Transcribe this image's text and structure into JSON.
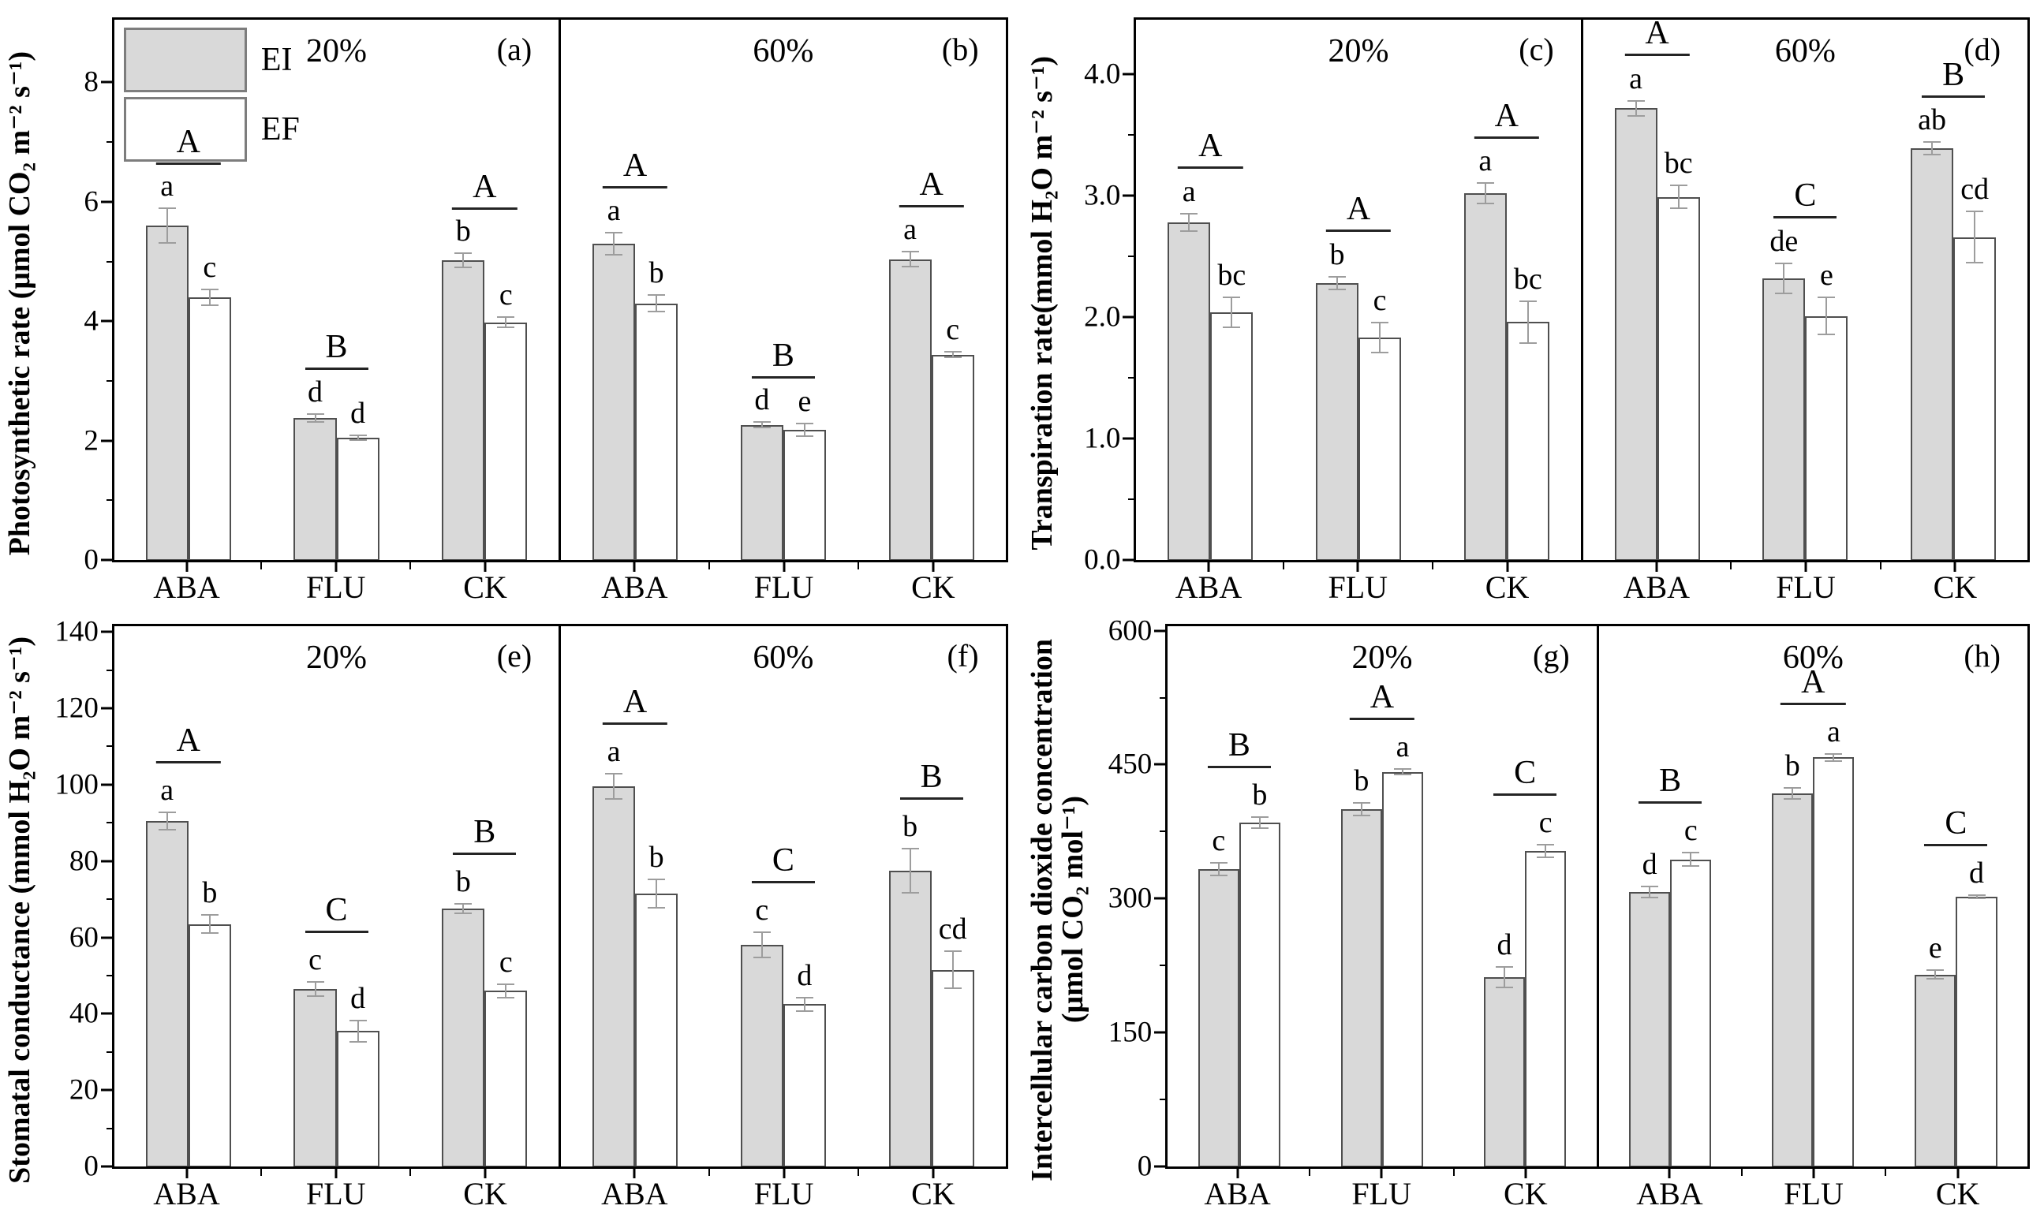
{
  "figure": {
    "legend": {
      "items": [
        {
          "label": "EI",
          "fill": "#d9d9d9"
        },
        {
          "label": "EF",
          "fill": "#ffffff"
        }
      ]
    },
    "colors": {
      "axis": "#000000",
      "bar_border": "#4f4f4f",
      "bar_gray": "#d9d9d9",
      "bar_white": "#ffffff",
      "error_bar": "#9d9d9d"
    },
    "categories": [
      "ABA",
      "FLU",
      "CK"
    ],
    "series_names": [
      "EI",
      "EF"
    ]
  },
  "chart_data": [
    {
      "type": "bar",
      "ylabel_lines": [
        "Photosynthetic rate (μmol CO₂ m⁻² s⁻¹)"
      ],
      "yticks": [
        0,
        2,
        4,
        6,
        8
      ],
      "ytick_labels": [
        "0",
        "2",
        "4",
        "6",
        "8"
      ],
      "ylim": [
        0,
        9.05
      ],
      "categories": [
        "ABA",
        "FLU",
        "CK"
      ],
      "panels": [
        {
          "tag": "(a)",
          "title": "20%",
          "legend": true,
          "groups": [
            {
              "category": "ABA",
              "group_letter": "A",
              "bars": [
                {
                  "series": "EI",
                  "value": 5.6,
                  "error": 0.3,
                  "letter": "a"
                },
                {
                  "series": "EF",
                  "value": 4.4,
                  "error": 0.15,
                  "letter": "c"
                }
              ]
            },
            {
              "category": "FLU",
              "group_letter": "B",
              "bars": [
                {
                  "series": "EI",
                  "value": 2.38,
                  "error": 0.08,
                  "letter": "d"
                },
                {
                  "series": "EF",
                  "value": 2.05,
                  "error": 0.05,
                  "letter": "d"
                }
              ]
            },
            {
              "category": "CK",
              "group_letter": "A",
              "bars": [
                {
                  "series": "EI",
                  "value": 5.02,
                  "error": 0.13,
                  "letter": "b"
                },
                {
                  "series": "EF",
                  "value": 3.98,
                  "error": 0.1,
                  "letter": "c"
                }
              ]
            }
          ]
        },
        {
          "tag": "(b)",
          "title": "60%",
          "legend": false,
          "groups": [
            {
              "category": "ABA",
              "group_letter": "A",
              "bars": [
                {
                  "series": "EI",
                  "value": 5.3,
                  "error": 0.2,
                  "letter": "a"
                },
                {
                  "series": "EF",
                  "value": 4.3,
                  "error": 0.15,
                  "letter": "b"
                }
              ]
            },
            {
              "category": "FLU",
              "group_letter": "B",
              "bars": [
                {
                  "series": "EI",
                  "value": 2.26,
                  "error": 0.06,
                  "letter": "d"
                },
                {
                  "series": "EF",
                  "value": 2.18,
                  "error": 0.12,
                  "letter": "e"
                }
              ]
            },
            {
              "category": "CK",
              "group_letter": "A",
              "bars": [
                {
                  "series": "EI",
                  "value": 5.04,
                  "error": 0.14,
                  "letter": "a"
                },
                {
                  "series": "EF",
                  "value": 3.44,
                  "error": 0.06,
                  "letter": "c"
                }
              ]
            }
          ]
        }
      ]
    },
    {
      "type": "bar",
      "ylabel_lines": [
        "Transpiration rate(mmol H₂O m⁻² s⁻¹)"
      ],
      "yticks": [
        0,
        1,
        2,
        3,
        4
      ],
      "ytick_labels": [
        "0.0",
        "1.0",
        "2.0",
        "3.0",
        "4.0"
      ],
      "ylim": [
        0,
        4.45
      ],
      "categories": [
        "ABA",
        "FLU",
        "CK"
      ],
      "panels": [
        {
          "tag": "(c)",
          "title": "20%",
          "legend": false,
          "groups": [
            {
              "category": "ABA",
              "group_letter": "A",
              "bars": [
                {
                  "series": "EI",
                  "value": 2.78,
                  "error": 0.08,
                  "letter": "a"
                },
                {
                  "series": "EF",
                  "value": 2.04,
                  "error": 0.13,
                  "letter": "bc"
                }
              ]
            },
            {
              "category": "FLU",
              "group_letter": "A",
              "bars": [
                {
                  "series": "EI",
                  "value": 2.28,
                  "error": 0.06,
                  "letter": "b"
                },
                {
                  "series": "EF",
                  "value": 1.83,
                  "error": 0.13,
                  "letter": "c"
                }
              ]
            },
            {
              "category": "CK",
              "group_letter": "A",
              "bars": [
                {
                  "series": "EI",
                  "value": 3.02,
                  "error": 0.09,
                  "letter": "a"
                },
                {
                  "series": "EF",
                  "value": 1.96,
                  "error": 0.18,
                  "letter": "bc"
                }
              ]
            }
          ]
        },
        {
          "tag": "(d)",
          "title": "60%",
          "legend": false,
          "groups": [
            {
              "category": "ABA",
              "group_letter": "A",
              "bars": [
                {
                  "series": "EI",
                  "value": 3.72,
                  "error": 0.07,
                  "letter": "a"
                },
                {
                  "series": "EF",
                  "value": 2.99,
                  "error": 0.1,
                  "letter": "bc"
                }
              ]
            },
            {
              "category": "FLU",
              "group_letter": "C",
              "bars": [
                {
                  "series": "EI",
                  "value": 2.32,
                  "error": 0.13,
                  "letter": "de"
                },
                {
                  "series": "EF",
                  "value": 2.01,
                  "error": 0.16,
                  "letter": "e"
                }
              ]
            },
            {
              "category": "CK",
              "group_letter": "B",
              "bars": [
                {
                  "series": "EI",
                  "value": 3.39,
                  "error": 0.06,
                  "letter": "ab"
                },
                {
                  "series": "EF",
                  "value": 2.66,
                  "error": 0.22,
                  "letter": "cd"
                }
              ]
            }
          ]
        }
      ]
    },
    {
      "type": "bar",
      "ylabel_lines": [
        "Stomatal conductance (mmol H₂O m⁻² s⁻¹)"
      ],
      "yticks": [
        0,
        20,
        40,
        60,
        80,
        100,
        120,
        140
      ],
      "ytick_labels": [
        "0",
        "20",
        "40",
        "60",
        "80",
        "100",
        "120",
        "140"
      ],
      "ylim": [
        0,
        141.5
      ],
      "categories": [
        "ABA",
        "FLU",
        "CK"
      ],
      "panels": [
        {
          "tag": "(e)",
          "title": "20%",
          "legend": false,
          "groups": [
            {
              "category": "ABA",
              "group_letter": "A",
              "bars": [
                {
                  "series": "EI",
                  "value": 90.5,
                  "error": 2.5,
                  "letter": "a"
                },
                {
                  "series": "EF",
                  "value": 63.5,
                  "error": 2.5,
                  "letter": "b"
                }
              ]
            },
            {
              "category": "FLU",
              "group_letter": "C",
              "bars": [
                {
                  "series": "EI",
                  "value": 46.5,
                  "error": 2.0,
                  "letter": "c"
                },
                {
                  "series": "EF",
                  "value": 35.5,
                  "error": 3.0,
                  "letter": "d"
                }
              ]
            },
            {
              "category": "CK",
              "group_letter": "B",
              "bars": [
                {
                  "series": "EI",
                  "value": 67.5,
                  "error": 1.5,
                  "letter": "b"
                },
                {
                  "series": "EF",
                  "value": 46.0,
                  "error": 2.0,
                  "letter": "c"
                }
              ]
            }
          ]
        },
        {
          "tag": "(f)",
          "title": "60%",
          "legend": false,
          "groups": [
            {
              "category": "ABA",
              "group_letter": "A",
              "bars": [
                {
                  "series": "EI",
                  "value": 99.5,
                  "error": 3.5,
                  "letter": "a"
                },
                {
                  "series": "EF",
                  "value": 71.5,
                  "error": 4.0,
                  "letter": "b"
                }
              ]
            },
            {
              "category": "FLU",
              "group_letter": "C",
              "bars": [
                {
                  "series": "EI",
                  "value": 58.0,
                  "error": 3.5,
                  "letter": "c"
                },
                {
                  "series": "EF",
                  "value": 42.5,
                  "error": 2.0,
                  "letter": "d"
                }
              ]
            },
            {
              "category": "CK",
              "group_letter": "B",
              "bars": [
                {
                  "series": "EI",
                  "value": 77.5,
                  "error": 6.0,
                  "letter": "b"
                },
                {
                  "series": "EF",
                  "value": 51.5,
                  "error": 5.0,
                  "letter": "cd"
                }
              ]
            }
          ]
        }
      ]
    },
    {
      "type": "bar",
      "ylabel_lines": [
        "Intercellular carbon dioxide concentration",
        "(μmol CO₂ mol⁻¹)"
      ],
      "yticks": [
        0,
        150,
        300,
        450,
        600
      ],
      "ytick_labels": [
        "0",
        "150",
        "300",
        "450",
        "600"
      ],
      "ylim": [
        0,
        605
      ],
      "categories": [
        "ABA",
        "FLU",
        "CK"
      ],
      "panels": [
        {
          "tag": "(g)",
          "title": "20%",
          "legend": false,
          "groups": [
            {
              "category": "ABA",
              "group_letter": "B",
              "bars": [
                {
                  "series": "EI",
                  "value": 333,
                  "error": 8,
                  "letter": "c"
                },
                {
                  "series": "EF",
                  "value": 385,
                  "error": 7,
                  "letter": "b"
                }
              ]
            },
            {
              "category": "FLU",
              "group_letter": "A",
              "bars": [
                {
                  "series": "EI",
                  "value": 400,
                  "error": 8,
                  "letter": "b"
                },
                {
                  "series": "EF",
                  "value": 442,
                  "error": 4,
                  "letter": "a"
                }
              ]
            },
            {
              "category": "CK",
              "group_letter": "C",
              "bars": [
                {
                  "series": "EI",
                  "value": 212,
                  "error": 12,
                  "letter": "d"
                },
                {
                  "series": "EF",
                  "value": 353,
                  "error": 8,
                  "letter": "c"
                }
              ]
            }
          ]
        },
        {
          "tag": "(h)",
          "title": "60%",
          "legend": false,
          "groups": [
            {
              "category": "ABA",
              "group_letter": "B",
              "bars": [
                {
                  "series": "EI",
                  "value": 307,
                  "error": 7,
                  "letter": "d"
                },
                {
                  "series": "EF",
                  "value": 344,
                  "error": 8,
                  "letter": "c"
                }
              ]
            },
            {
              "category": "FLU",
              "group_letter": "A",
              "bars": [
                {
                  "series": "EI",
                  "value": 418,
                  "error": 7,
                  "letter": "b"
                },
                {
                  "series": "EF",
                  "value": 458,
                  "error": 5,
                  "letter": "a"
                }
              ]
            },
            {
              "category": "CK",
              "group_letter": "C",
              "bars": [
                {
                  "series": "EI",
                  "value": 215,
                  "error": 6,
                  "letter": "e"
                },
                {
                  "series": "EF",
                  "value": 302,
                  "error": 3,
                  "letter": "d"
                }
              ]
            }
          ]
        }
      ]
    }
  ]
}
